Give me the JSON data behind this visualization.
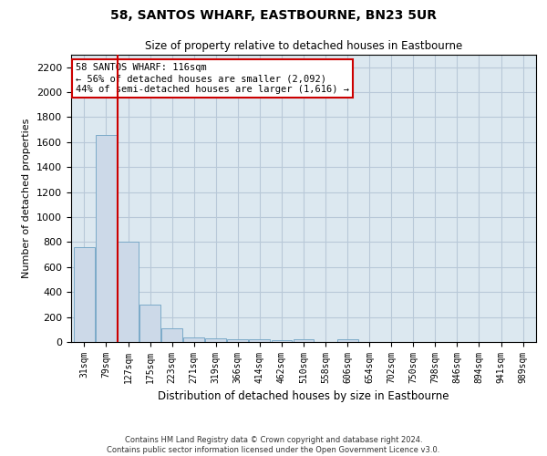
{
  "title": "58, SANTOS WHARF, EASTBOURNE, BN23 5UR",
  "subtitle": "Size of property relative to detached houses in Eastbourne",
  "xlabel": "Distribution of detached houses by size in Eastbourne",
  "ylabel": "Number of detached properties",
  "footer_line1": "Contains HM Land Registry data © Crown copyright and database right 2024.",
  "footer_line2": "Contains public sector information licensed under the Open Government Licence v3.0.",
  "annotation_title": "58 SANTOS WHARF: 116sqm",
  "annotation_line1": "← 56% of detached houses are smaller (2,092)",
  "annotation_line2": "44% of semi-detached houses are larger (1,616) →",
  "property_size": 116,
  "bin_labels": [
    "31sqm",
    "79sqm",
    "127sqm",
    "175sqm",
    "223sqm",
    "271sqm",
    "319sqm",
    "366sqm",
    "414sqm",
    "462sqm",
    "510sqm",
    "558sqm",
    "606sqm",
    "654sqm",
    "702sqm",
    "750sqm",
    "798sqm",
    "846sqm",
    "894sqm",
    "941sqm",
    "989sqm"
  ],
  "bar_values": [
    760,
    1660,
    800,
    300,
    110,
    40,
    30,
    20,
    20,
    15,
    25,
    0,
    20,
    0,
    0,
    0,
    0,
    0,
    0,
    0,
    0
  ],
  "bar_color": "#ccd9e8",
  "bar_edge_color": "#7baac8",
  "vline_color": "#cc0000",
  "vline_x": 1.5,
  "grid_color": "#b8c8d8",
  "background_color": "#dce8f0",
  "annotation_box_color": "#ffffff",
  "annotation_box_edge": "#cc0000",
  "ylim": [
    0,
    2300
  ],
  "yticks": [
    0,
    200,
    400,
    600,
    800,
    1000,
    1200,
    1400,
    1600,
    1800,
    2000,
    2200
  ]
}
